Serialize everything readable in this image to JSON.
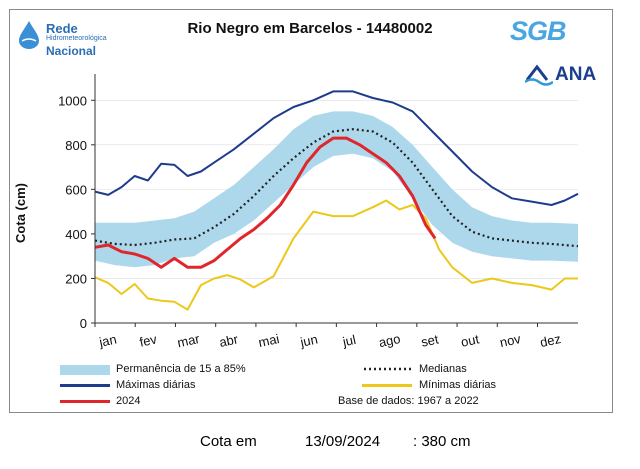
{
  "header": {
    "title": "Rio Negro em Barcelos - 14480002",
    "rede_logo": [
      "Rede",
      "Hidrometeorológica",
      "Nacional"
    ],
    "sgb_logo": "SGB",
    "ana_logo": "ANA"
  },
  "colors": {
    "band": "#add8ec",
    "max": "#1f3c8c",
    "min": "#ecc81a",
    "median": "#222222",
    "y2024": "#e0262c",
    "grid": "#dddddd"
  },
  "legend": {
    "band": "Permanência de 15 a 85%",
    "median": "Medianas",
    "max": "Máximas diárias",
    "min": "Mínimas diárias",
    "y2024": "2024",
    "base": "Base de dados: 1967 a 2022"
  },
  "footer": {
    "label": "Cota em",
    "date": "13/09/2024",
    "value": ": 380 cm"
  },
  "chart_data": {
    "type": "line",
    "title": "Rio Negro em Barcelos - 14480002",
    "ylabel": "Cota (cm)",
    "xlabel": "",
    "ylim": [
      0,
      1100
    ],
    "yticks": [
      0,
      200,
      400,
      600,
      800,
      1000
    ],
    "xlim": [
      0,
      365
    ],
    "months": [
      "jan",
      "fev",
      "mar",
      "abr",
      "mai",
      "jun",
      "jul",
      "ago",
      "set",
      "out",
      "nov",
      "dez"
    ],
    "series": [
      {
        "name": "Permanência de 15 a 85%",
        "kind": "band",
        "x": [
          0,
          15,
          30,
          45,
          60,
          75,
          90,
          105,
          120,
          135,
          150,
          165,
          180,
          195,
          210,
          225,
          240,
          255,
          270,
          285,
          300,
          315,
          330,
          345,
          365
        ],
        "upper": [
          450,
          450,
          450,
          460,
          470,
          500,
          560,
          620,
          700,
          780,
          870,
          930,
          950,
          950,
          930,
          880,
          800,
          700,
          600,
          520,
          480,
          460,
          450,
          450,
          445
        ],
        "lower": [
          280,
          260,
          250,
          260,
          290,
          300,
          360,
          400,
          460,
          540,
          620,
          700,
          750,
          760,
          740,
          680,
          560,
          440,
          360,
          320,
          300,
          290,
          280,
          280,
          275
        ]
      },
      {
        "name": "Medianas",
        "kind": "dotted",
        "x": [
          0,
          15,
          30,
          45,
          60,
          75,
          90,
          105,
          120,
          135,
          150,
          165,
          180,
          195,
          210,
          225,
          240,
          255,
          270,
          285,
          300,
          315,
          330,
          345,
          365
        ],
        "y": [
          370,
          355,
          350,
          360,
          375,
          380,
          430,
          490,
          570,
          660,
          740,
          810,
          860,
          870,
          860,
          810,
          720,
          600,
          480,
          410,
          380,
          370,
          360,
          355,
          345
        ]
      },
      {
        "name": "Máximas diárias",
        "kind": "line",
        "x": [
          0,
          10,
          20,
          30,
          40,
          50,
          60,
          70,
          80,
          90,
          105,
          120,
          135,
          150,
          165,
          180,
          195,
          210,
          225,
          240,
          255,
          270,
          285,
          300,
          315,
          330,
          345,
          355,
          365
        ],
        "y": [
          590,
          575,
          610,
          660,
          640,
          715,
          710,
          660,
          680,
          720,
          780,
          850,
          920,
          970,
          1000,
          1040,
          1040,
          1010,
          990,
          950,
          860,
          770,
          680,
          610,
          560,
          545,
          530,
          550,
          580
        ]
      },
      {
        "name": "Mínimas diárias",
        "kind": "line",
        "x": [
          0,
          10,
          20,
          30,
          40,
          50,
          60,
          70,
          80,
          90,
          100,
          110,
          120,
          135,
          150,
          165,
          180,
          195,
          210,
          220,
          230,
          240,
          250,
          260,
          270,
          285,
          300,
          315,
          330,
          345,
          355,
          365
        ],
        "y": [
          205,
          180,
          130,
          175,
          110,
          100,
          95,
          60,
          170,
          200,
          215,
          195,
          160,
          210,
          380,
          500,
          480,
          480,
          520,
          550,
          510,
          530,
          470,
          330,
          250,
          180,
          200,
          180,
          170,
          150,
          200,
          200
        ]
      },
      {
        "name": "2024",
        "kind": "line",
        "x": [
          0,
          10,
          20,
          30,
          40,
          50,
          60,
          70,
          80,
          90,
          100,
          110,
          120,
          130,
          140,
          150,
          160,
          170,
          180,
          190,
          200,
          210,
          220,
          230,
          240,
          250,
          257
        ],
        "y": [
          340,
          350,
          320,
          310,
          290,
          250,
          290,
          250,
          250,
          280,
          330,
          380,
          420,
          470,
          530,
          620,
          720,
          790,
          830,
          830,
          800,
          760,
          720,
          660,
          570,
          440,
          380
        ]
      }
    ]
  }
}
